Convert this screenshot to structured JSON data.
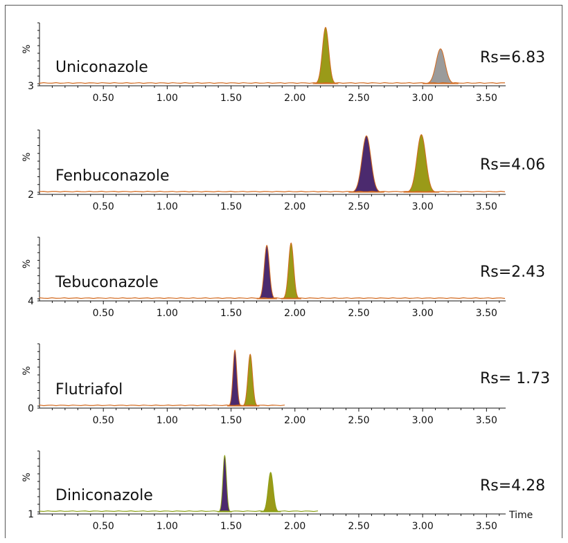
{
  "chart_data": {
    "type": "line",
    "x_unit_label": "Time",
    "y_axis_label": "%",
    "xlim": [
      0.0,
      3.65
    ],
    "x_ticks": [
      "0.50",
      "1.00",
      "1.50",
      "2.00",
      "2.50",
      "3.00",
      "3.50"
    ],
    "panels": [
      {
        "name": "Uniconazole",
        "rs": "Rs=6.83",
        "y_bottom_label": "3",
        "trace_end": 3.65,
        "baseline_color": "#d2691e",
        "peaks": [
          {
            "x": 2.24,
            "height": 0.97,
            "width": 0.025,
            "fill": "#9a9a18"
          },
          {
            "x": 3.14,
            "height": 0.6,
            "width": 0.035,
            "fill": "#9b9b9b"
          }
        ]
      },
      {
        "name": "Fenbuconazole",
        "rs": "Rs=4.06",
        "y_bottom_label": "2",
        "trace_end": 3.65,
        "baseline_color": "#d2691e",
        "peaks": [
          {
            "x": 2.56,
            "height": 0.95,
            "width": 0.035,
            "fill": "#4b2a6e"
          },
          {
            "x": 2.99,
            "height": 0.97,
            "width": 0.035,
            "fill": "#9a9a18"
          }
        ]
      },
      {
        "name": "Tebuconazole",
        "rs": "Rs=2.43",
        "y_bottom_label": "4",
        "trace_end": 3.65,
        "baseline_color": "#d2691e",
        "peaks": [
          {
            "x": 1.78,
            "height": 0.91,
            "width": 0.02,
            "fill": "#4b2a6e"
          },
          {
            "x": 1.97,
            "height": 0.95,
            "width": 0.02,
            "fill": "#9a9a18"
          }
        ]
      },
      {
        "name": "Flutriafol",
        "rs": "Rs= 1.73",
        "y_bottom_label": "0",
        "trace_end": 1.93,
        "baseline_color": "#d2691e",
        "peaks": [
          {
            "x": 1.53,
            "height": 0.94,
            "width": 0.015,
            "fill": "#4b2a6e"
          },
          {
            "x": 1.65,
            "height": 0.87,
            "width": 0.018,
            "fill": "#9a9a18"
          }
        ]
      },
      {
        "name": "Diniconazole",
        "rs": "Rs=4.28",
        "y_bottom_label": "1",
        "trace_end": 2.19,
        "baseline_color": "#8ba017",
        "peaks": [
          {
            "x": 1.45,
            "height": 0.97,
            "width": 0.014,
            "fill": "#4b2a6e"
          },
          {
            "x": 1.81,
            "height": 0.68,
            "width": 0.02,
            "fill": "#9a9a18"
          }
        ]
      }
    ]
  }
}
